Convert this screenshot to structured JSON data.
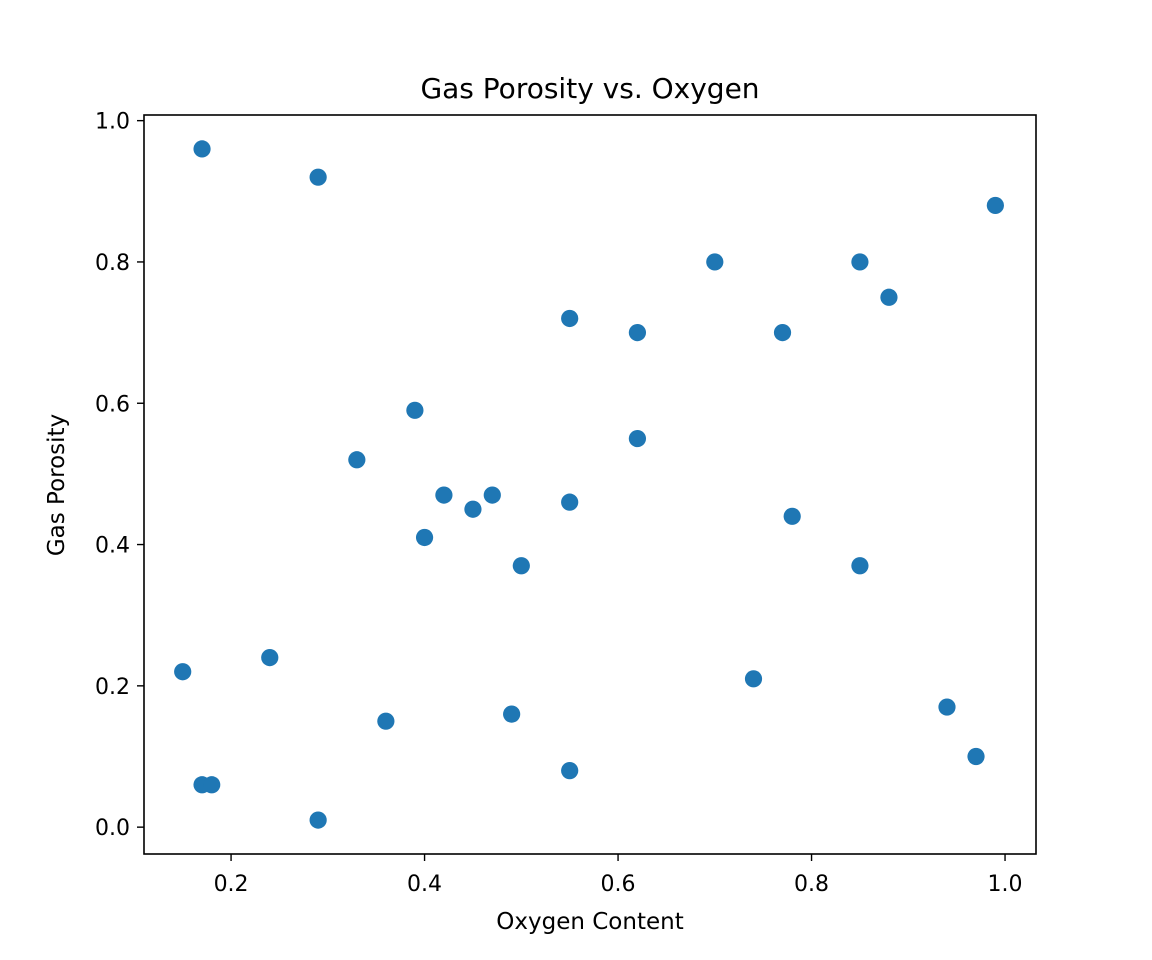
{
  "chart_data": {
    "type": "scatter",
    "title": "Gas Porosity vs. Oxygen",
    "xlabel": "Oxygen Content",
    "ylabel": "Gas Porosity",
    "xlim": [
      0.11,
      1.032
    ],
    "ylim": [
      -0.038,
      1.008
    ],
    "x_ticks": [
      {
        "value": 0.2,
        "label": "0.2"
      },
      {
        "value": 0.4,
        "label": "0.4"
      },
      {
        "value": 0.6,
        "label": "0.6"
      },
      {
        "value": 0.8,
        "label": "0.8"
      },
      {
        "value": 1.0,
        "label": "1.0"
      }
    ],
    "y_ticks": [
      {
        "value": 0.0,
        "label": "0.0"
      },
      {
        "value": 0.2,
        "label": "0.2"
      },
      {
        "value": 0.4,
        "label": "0.4"
      },
      {
        "value": 0.6,
        "label": "0.6"
      },
      {
        "value": 0.8,
        "label": "0.8"
      },
      {
        "value": 1.0,
        "label": "1.0"
      }
    ],
    "grid": false,
    "marker_color": "#1f77b4",
    "points": [
      {
        "x": 0.17,
        "y": 0.96
      },
      {
        "x": 0.29,
        "y": 0.92
      },
      {
        "x": 0.99,
        "y": 0.88
      },
      {
        "x": 0.7,
        "y": 0.8
      },
      {
        "x": 0.85,
        "y": 0.8
      },
      {
        "x": 0.88,
        "y": 0.75
      },
      {
        "x": 0.55,
        "y": 0.72
      },
      {
        "x": 0.62,
        "y": 0.7
      },
      {
        "x": 0.77,
        "y": 0.7
      },
      {
        "x": 0.39,
        "y": 0.59
      },
      {
        "x": 0.62,
        "y": 0.55
      },
      {
        "x": 0.33,
        "y": 0.52
      },
      {
        "x": 0.42,
        "y": 0.47
      },
      {
        "x": 0.47,
        "y": 0.47
      },
      {
        "x": 0.55,
        "y": 0.46
      },
      {
        "x": 0.45,
        "y": 0.45
      },
      {
        "x": 0.78,
        "y": 0.44
      },
      {
        "x": 0.4,
        "y": 0.41
      },
      {
        "x": 0.5,
        "y": 0.37
      },
      {
        "x": 0.85,
        "y": 0.37
      },
      {
        "x": 0.24,
        "y": 0.24
      },
      {
        "x": 0.15,
        "y": 0.22
      },
      {
        "x": 0.74,
        "y": 0.21
      },
      {
        "x": 0.94,
        "y": 0.17
      },
      {
        "x": 0.49,
        "y": 0.16
      },
      {
        "x": 0.36,
        "y": 0.15
      },
      {
        "x": 0.97,
        "y": 0.1
      },
      {
        "x": 0.55,
        "y": 0.08
      },
      {
        "x": 0.17,
        "y": 0.06
      },
      {
        "x": 0.18,
        "y": 0.06
      },
      {
        "x": 0.29,
        "y": 0.01
      }
    ]
  }
}
